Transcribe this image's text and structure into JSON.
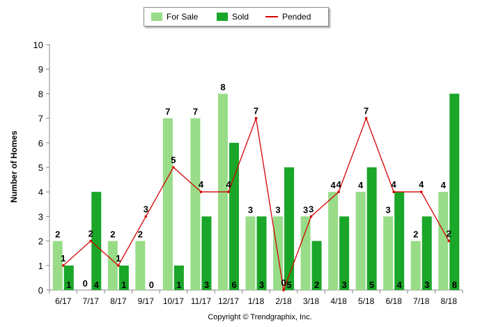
{
  "chart_data": {
    "type": "bar",
    "categories": [
      "6/17",
      "7/17",
      "8/17",
      "9/17",
      "10/17",
      "11/17",
      "12/17",
      "1/18",
      "2/18",
      "3/18",
      "4/18",
      "5/18",
      "6/18",
      "7/18",
      "8/18"
    ],
    "series": [
      {
        "name": "For Sale",
        "kind": "bar",
        "color": "#98dc88",
        "values": [
          2,
          0,
          2,
          2,
          7,
          7,
          8,
          3,
          3,
          3,
          4,
          4,
          3,
          2,
          4
        ]
      },
      {
        "name": "Sold",
        "kind": "bar",
        "color": "#1aa629",
        "values": [
          1,
          4,
          1,
          0,
          1,
          3,
          6,
          3,
          5,
          2,
          3,
          5,
          4,
          3,
          8
        ]
      },
      {
        "name": "Pended",
        "kind": "line",
        "color": "#d40000",
        "values": [
          1,
          2,
          1,
          3,
          5,
          4,
          4,
          7,
          0,
          3,
          4,
          7,
          4,
          4,
          2
        ]
      }
    ],
    "ylabel": "Number of Homes",
    "xlabel": "",
    "ylim": [
      0,
      10
    ],
    "yticks": [
      0,
      1,
      2,
      3,
      4,
      5,
      6,
      7,
      8,
      9,
      10
    ],
    "grid": false,
    "legend_position": "top-center"
  },
  "legend": {
    "for_sale": "For Sale",
    "sold": "Sold",
    "pended": "Pended"
  },
  "copyright": "Copyright © Trendgraphix, Inc."
}
